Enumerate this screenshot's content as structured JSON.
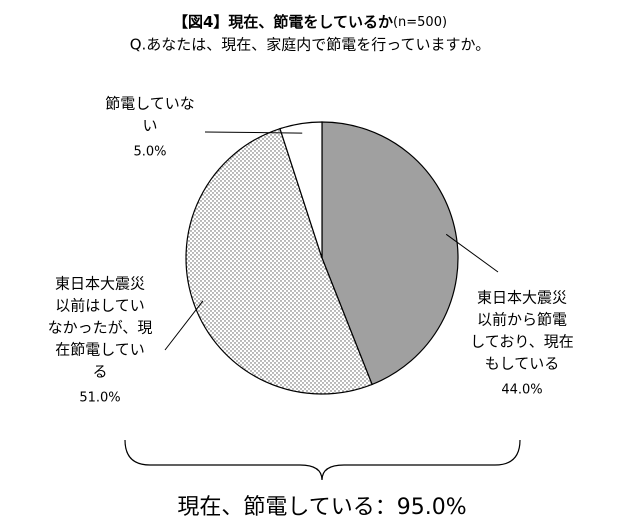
{
  "chart_data": {
    "type": "pie",
    "title": "【図4】現在、節電をしているか",
    "title_note": "(n=500)",
    "subtitle": "Q.あなたは、現在、家庭内で節電を行っていますか。",
    "series": [
      {
        "name": [
          "東日本大震災",
          "以前から節電",
          "しており、現在",
          "もしている"
        ],
        "values": [
          44.0
        ],
        "value_labels": [
          "44.0%"
        ],
        "color": "#a0a0a0"
      },
      {
        "name": [
          "東日本大震災",
          "以前はしてい",
          "なかったが、現",
          "在節電してい",
          "る"
        ],
        "values": [
          51.0
        ],
        "value_labels": [
          "51.0%"
        ],
        "color": "dotted"
      },
      {
        "name": [
          "節電していな",
          "い"
        ],
        "values": [
          5.0
        ],
        "value_labels": [
          "5.0%"
        ],
        "color": "#ffffff"
      }
    ],
    "annotation": "現在、節電している：95.0%"
  }
}
